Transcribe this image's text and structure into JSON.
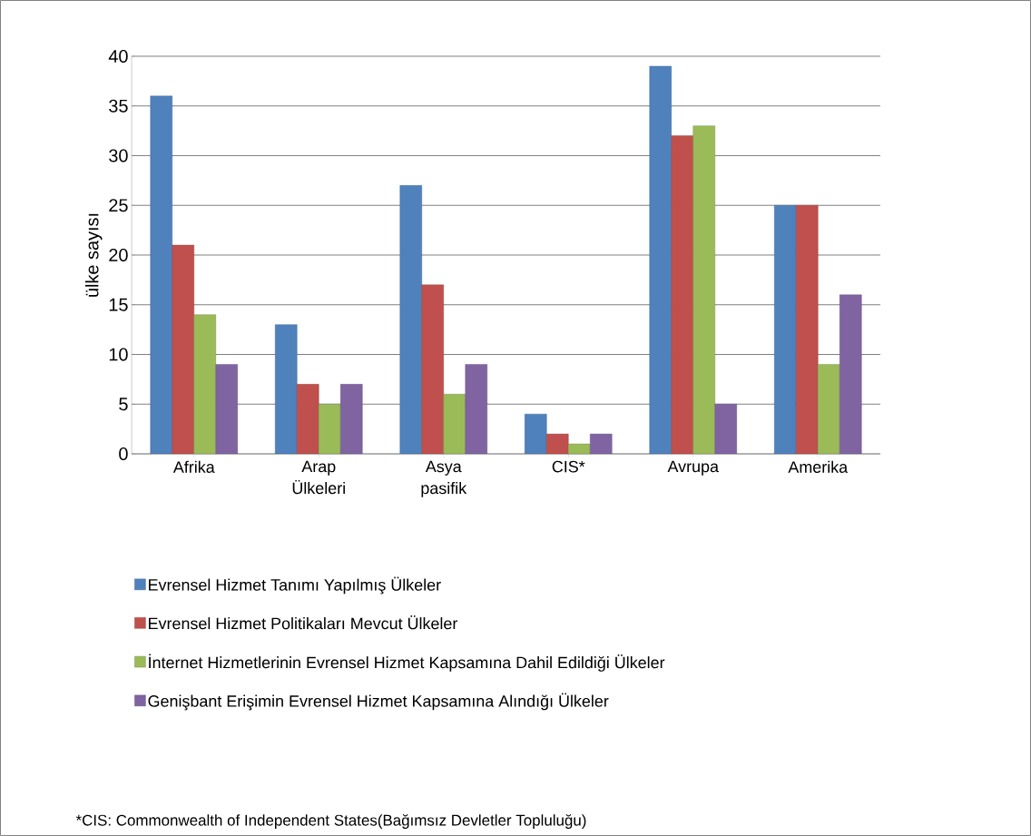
{
  "chart_data": {
    "type": "bar",
    "ylabel": "ülke sayısı",
    "categories": [
      "Afrika",
      "Arap Ülkeleri",
      "Asya pasifik",
      "CIS*",
      "Avrupa",
      "Amerika"
    ],
    "series": [
      {
        "name": "Evrensel Hizmet Tanımı Yapılmış Ülkeler",
        "color": "#4f81bd",
        "values": [
          36,
          13,
          27,
          4,
          39,
          25
        ]
      },
      {
        "name": "Evrensel Hizmet Politikaları Mevcut Ülkeler",
        "color": "#c0504d",
        "values": [
          21,
          7,
          17,
          2,
          32,
          25
        ]
      },
      {
        "name": "İnternet Hizmetlerinin Evrensel Hizmet Kapsamına Dahil Edildiği Ülkeler",
        "color": "#9bbb59",
        "values": [
          14,
          5,
          6,
          1,
          33,
          9
        ]
      },
      {
        "name": "Genişbant Erişimin Evrensel Hizmet Kapsamına Alındığı Ülkeler",
        "color": "#8064a2",
        "values": [
          9,
          7,
          9,
          2,
          5,
          16
        ]
      }
    ],
    "ylim": [
      0,
      40
    ],
    "yticks": [
      0,
      5,
      10,
      15,
      20,
      25,
      30,
      35,
      40
    ],
    "grid": "y",
    "legend": "bottom",
    "annotations": [
      "*CIS: Commonwealth of Independent States(Bağımsız Devletler Topluluğu)"
    ]
  }
}
